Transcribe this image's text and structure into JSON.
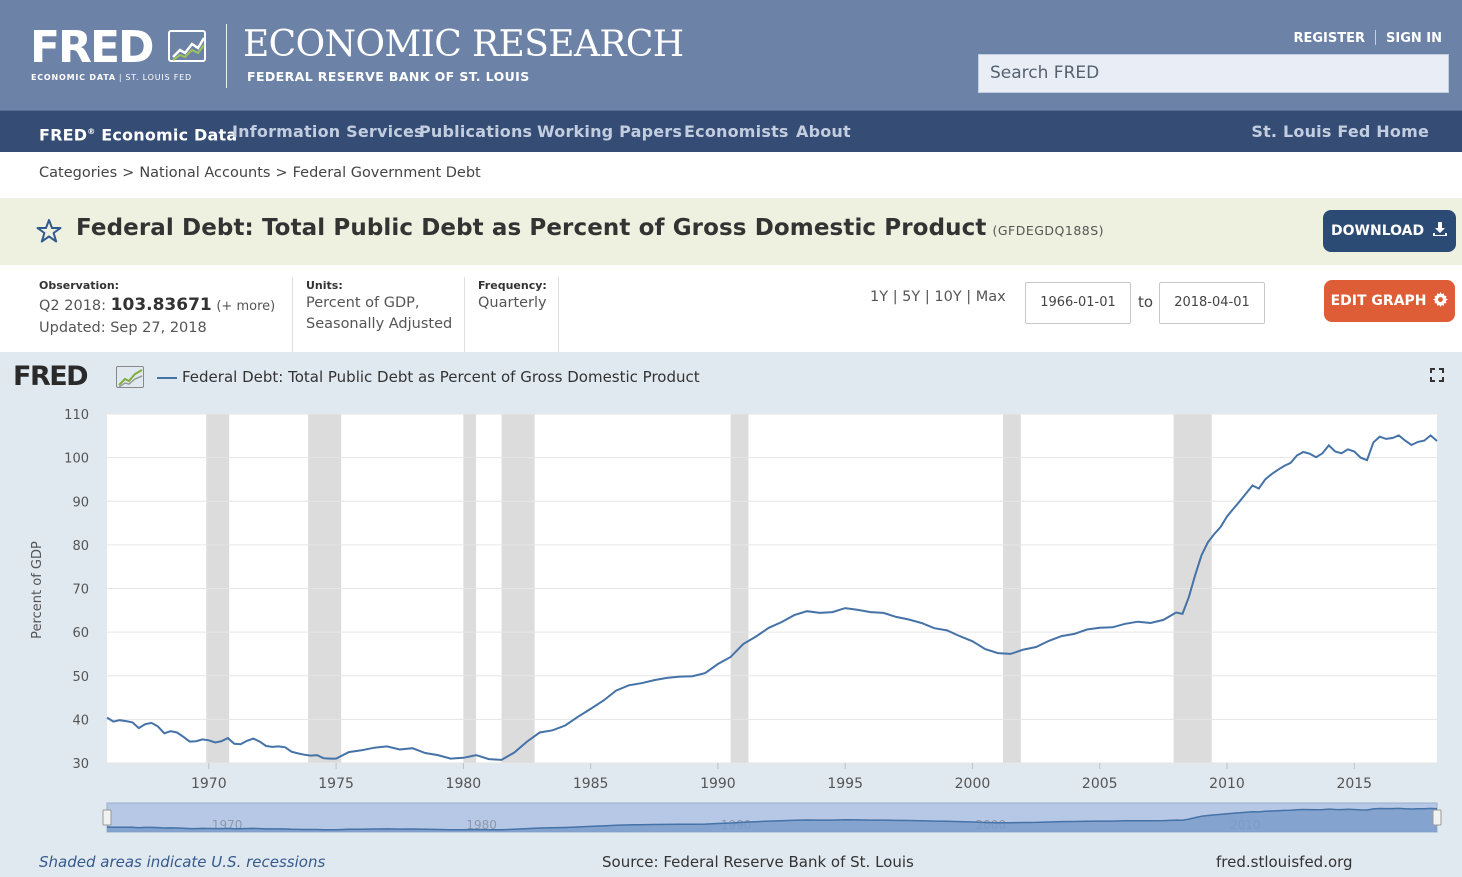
{
  "header": {
    "logo_text": "FRED",
    "logo_sub_left": "ECONOMIC DATA",
    "logo_sub_sep": "|",
    "logo_sub_right": "ST. LOUIS FED",
    "title": "ECONOMIC RESEARCH",
    "subtitle": "FEDERAL RESERVE BANK OF ST. LOUIS",
    "register": "REGISTER",
    "sign_in": "SIGN IN",
    "search_placeholder": "Search FRED"
  },
  "nav": {
    "fred": "FRED",
    "fred_mark": "®",
    "fred_rest": " Economic Data",
    "items": [
      "Information Services",
      "Publications",
      "Working Papers",
      "Economists",
      "About"
    ],
    "home": "St. Louis Fed Home"
  },
  "breadcrumb": [
    "Categories",
    "National Accounts",
    "Federal Government Debt"
  ],
  "breadcrumb_sep": ">",
  "series": {
    "title": "Federal Debt: Total Public Debt as Percent of Gross Domestic Product",
    "id": "(GFDEGDQ188S)",
    "download": "DOWNLOAD",
    "edit_graph": "EDIT GRAPH",
    "observation_label": "Observation:",
    "observation_period": "Q2 2018:",
    "observation_value": "103.83671",
    "observation_more": "(+ more)",
    "updated": "Updated: Sep 27, 2018",
    "units_label": "Units:",
    "units_line1": "Percent of GDP,",
    "units_line2": "Seasonally Adjusted",
    "frequency_label": "Frequency:",
    "frequency": "Quarterly",
    "ranges": "1Y | 5Y | 10Y | Max",
    "date_from": "1966-01-01",
    "date_to": "2018-04-01",
    "to": "to"
  },
  "graph": {
    "logo": "FRED",
    "legend": "Federal Debt: Total Public Debt as Percent of Gross Domestic Product",
    "footer_note": "Shaded areas indicate U.S. recessions",
    "source": "Source: Federal Reserve Bank of St. Louis",
    "url": "fred.stlouisfed.org"
  },
  "colors": {
    "header_bg": "#6c82a6",
    "nav_bg": "#354d75",
    "line": "#4572a7",
    "recession": "#dcdcdc",
    "download_bg": "#2c4b74",
    "edit_bg": "#de5c36"
  },
  "chart_data": {
    "type": "line",
    "ylabel": "Percent of GDP",
    "ylim": [
      30,
      110
    ],
    "yticks": [
      30,
      40,
      50,
      60,
      70,
      80,
      90,
      100,
      110
    ],
    "xlim": [
      1966.0,
      2018.25
    ],
    "xticks": [
      1970,
      1975,
      1980,
      1985,
      1990,
      1995,
      2000,
      2005,
      2010,
      2015
    ],
    "navigator_ticks": [
      1970,
      1980,
      1990,
      2000,
      2010
    ],
    "recessions": [
      [
        1969.9,
        1970.8
      ],
      [
        1973.9,
        1975.2
      ],
      [
        1980.0,
        1980.5
      ],
      [
        1981.5,
        1982.8
      ],
      [
        1990.5,
        1991.2
      ],
      [
        2001.2,
        2001.9
      ],
      [
        2007.9,
        2009.4
      ]
    ],
    "series": [
      {
        "x": [
          1966.0,
          1966.25,
          1966.5,
          1966.75,
          1967.0,
          1967.25,
          1967.5,
          1967.75,
          1968.0,
          1968.25,
          1968.5,
          1968.75,
          1969.0,
          1969.25,
          1969.5,
          1969.75,
          1970.0,
          1970.25,
          1970.5,
          1970.75,
          1971.0,
          1971.25,
          1971.5,
          1971.75,
          1972.0,
          1972.25,
          1972.5,
          1972.75,
          1973.0,
          1973.25,
          1973.5,
          1973.75,
          1974.0,
          1974.25,
          1974.5,
          1974.75,
          1975.0,
          1975.5,
          1976.0,
          1976.5,
          1977.0,
          1977.5,
          1978.0,
          1978.5,
          1979.0,
          1979.5,
          1980.0,
          1980.5,
          1981.0,
          1981.5,
          1982.0,
          1982.5,
          1983.0,
          1983.5,
          1984.0,
          1984.5,
          1985.0,
          1985.5,
          1986.0,
          1986.5,
          1987.0,
          1987.5,
          1988.0,
          1988.5,
          1989.0,
          1989.5,
          1990.0,
          1990.5,
          1991.0,
          1991.5,
          1992.0,
          1992.5,
          1993.0,
          1993.5,
          1994.0,
          1994.5,
          1995.0,
          1995.5,
          1996.0,
          1996.5,
          1997.0,
          1997.5,
          1998.0,
          1998.5,
          1999.0,
          1999.5,
          2000.0,
          2000.5,
          2001.0,
          2001.5,
          2002.0,
          2002.5,
          2003.0,
          2003.5,
          2004.0,
          2004.5,
          2005.0,
          2005.5,
          2006.0,
          2006.5,
          2007.0,
          2007.5,
          2008.0,
          2008.25,
          2008.5,
          2008.75,
          2009.0,
          2009.25,
          2009.5,
          2009.75,
          2010.0,
          2010.25,
          2010.5,
          2010.75,
          2011.0,
          2011.25,
          2011.5,
          2011.75,
          2012.0,
          2012.25,
          2012.5,
          2012.75,
          2013.0,
          2013.25,
          2013.5,
          2013.75,
          2014.0,
          2014.25,
          2014.5,
          2014.75,
          2015.0,
          2015.25,
          2015.5,
          2015.75,
          2016.0,
          2016.25,
          2016.5,
          2016.75,
          2017.0,
          2017.25,
          2017.5,
          2017.75,
          2018.0,
          2018.25
        ],
        "y": [
          40.4,
          39.5,
          39.8,
          39.6,
          39.3,
          38.0,
          38.9,
          39.2,
          38.4,
          36.8,
          37.3,
          37.0,
          36.0,
          34.9,
          35.0,
          35.4,
          35.2,
          34.7,
          35.0,
          35.7,
          34.4,
          34.3,
          35.1,
          35.6,
          34.9,
          33.9,
          33.7,
          33.8,
          33.6,
          32.6,
          32.2,
          31.9,
          31.7,
          31.8,
          31.1,
          31.0,
          31.0,
          32.5,
          32.9,
          33.5,
          33.8,
          33.1,
          33.4,
          32.3,
          31.8,
          31.0,
          31.2,
          31.8,
          30.9,
          30.7,
          32.4,
          34.9,
          37.0,
          37.5,
          38.6,
          40.6,
          42.4,
          44.3,
          46.6,
          47.8,
          48.3,
          49.0,
          49.5,
          49.8,
          49.9,
          50.6,
          52.7,
          54.3,
          57.3,
          59.0,
          61.0,
          62.3,
          63.9,
          64.8,
          64.4,
          64.6,
          65.5,
          65.1,
          64.6,
          64.4,
          63.5,
          62.9,
          62.1,
          60.9,
          60.4,
          59.1,
          57.9,
          56.1,
          55.2,
          55.0,
          56.0,
          56.6,
          58.0,
          59.1,
          59.6,
          60.6,
          61.0,
          61.1,
          61.9,
          62.4,
          62.1,
          62.8,
          64.5,
          64.2,
          68.0,
          73.1,
          77.6,
          80.6,
          82.5,
          84.1,
          86.5,
          88.3,
          90.0,
          91.8,
          93.6,
          92.9,
          95.0,
          96.2,
          97.2,
          98.1,
          98.8,
          100.5,
          101.3,
          100.9,
          100.1,
          101.0,
          102.8,
          101.4,
          101.0,
          101.9,
          101.4,
          100.0,
          99.4,
          103.5,
          104.8,
          104.3,
          104.5,
          105.1,
          103.9,
          102.9,
          103.6,
          103.9,
          105.1,
          103.8
        ]
      }
    ]
  }
}
